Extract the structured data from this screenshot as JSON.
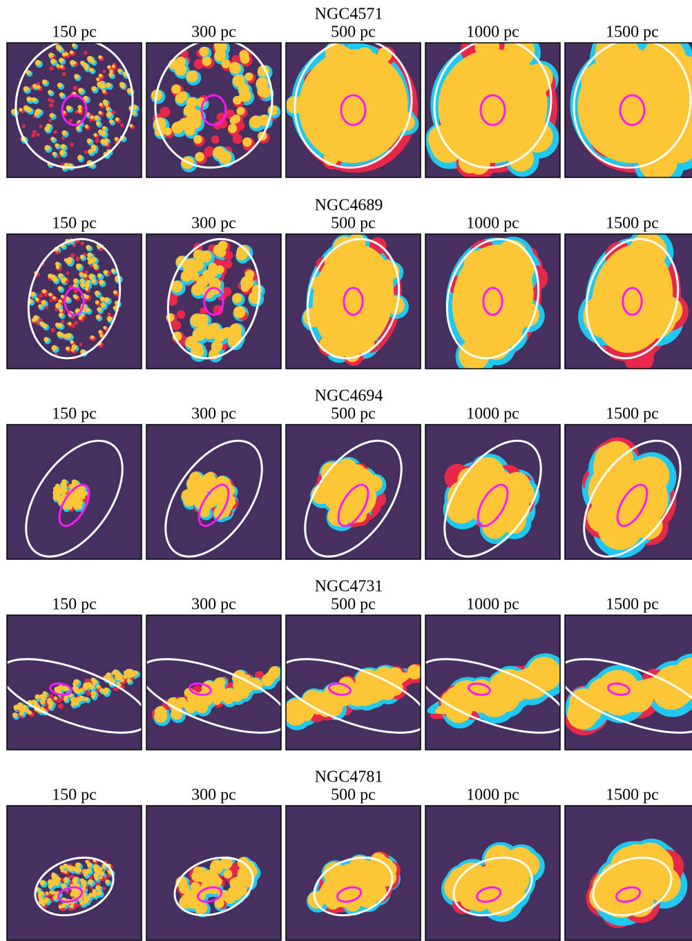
{
  "figure": {
    "rows": [
      {
        "title": "NGC4571",
        "panels": [
          "150 pc",
          "300 pc",
          "500 pc",
          "1000 pc",
          "1500 pc"
        ]
      },
      {
        "title": "NGC4689",
        "panels": [
          "150 pc",
          "300 pc",
          "500 pc",
          "1000 pc",
          "1500 pc"
        ]
      },
      {
        "title": "NGC4694",
        "panels": [
          "150 pc",
          "300 pc",
          "500 pc",
          "1000 pc",
          "1500 pc"
        ]
      },
      {
        "title": "NGC4731",
        "panels": [
          "150 pc",
          "300 pc",
          "500 pc",
          "1000 pc",
          "1500 pc"
        ]
      },
      {
        "title": "NGC4781",
        "panels": [
          "150 pc",
          "300 pc",
          "500 pc",
          "1000 pc",
          "1500 pc"
        ]
      }
    ]
  }
}
